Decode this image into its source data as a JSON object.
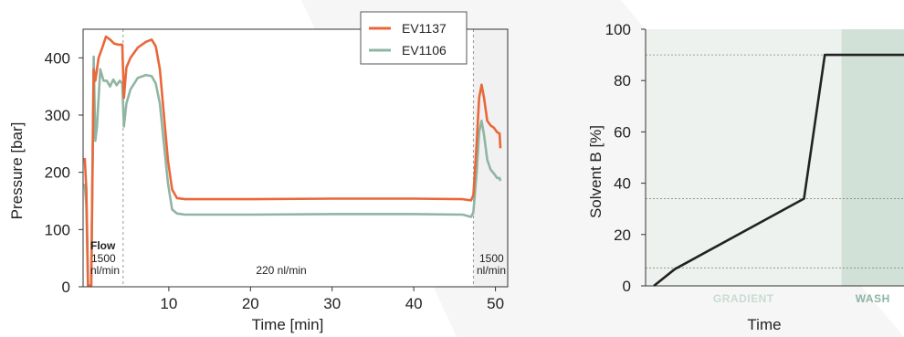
{
  "chart_data": [
    {
      "type": "line",
      "xlabel": "Time [min]",
      "ylabel": "Pressure [bar]",
      "xlim": [
        -0.5,
        51.5
      ],
      "ylim": [
        0,
        450
      ],
      "xticks": [
        10,
        20,
        30,
        40,
        50
      ],
      "yticks": [
        0,
        100,
        200,
        300,
        400
      ],
      "legend_position": "top-right",
      "annotations": {
        "flow_label": "Flow",
        "left_rate": "1500",
        "left_unit": "nl/min",
        "middle_rate": "220 nl/min",
        "right_rate": "1500",
        "right_unit": "nl/min"
      },
      "vlines_x": [
        4.4,
        47.3
      ],
      "series": [
        {
          "name": "EV1137",
          "color": "#e8683a",
          "points": [
            [
              -0.3,
              225
            ],
            [
              -0.1,
              170
            ],
            [
              0.1,
              2
            ],
            [
              0.5,
              2
            ],
            [
              0.8,
              380
            ],
            [
              1.0,
              360
            ],
            [
              1.4,
              400
            ],
            [
              1.9,
              420
            ],
            [
              2.3,
              437
            ],
            [
              2.8,
              432
            ],
            [
              3.3,
              425
            ],
            [
              3.8,
              423
            ],
            [
              4.3,
              423
            ],
            [
              4.5,
              330
            ],
            [
              4.8,
              383
            ],
            [
              5.3,
              400
            ],
            [
              6.2,
              418
            ],
            [
              7.2,
              428
            ],
            [
              7.9,
              432
            ],
            [
              8.4,
              420
            ],
            [
              8.9,
              380
            ],
            [
              9.4,
              300
            ],
            [
              9.9,
              220
            ],
            [
              10.4,
              170
            ],
            [
              11.0,
              155
            ],
            [
              12,
              153
            ],
            [
              20,
              153
            ],
            [
              30,
              154
            ],
            [
              40,
              154
            ],
            [
              46,
              153
            ],
            [
              47.0,
              151
            ],
            [
              47.3,
              160
            ],
            [
              47.7,
              250
            ],
            [
              48.0,
              330
            ],
            [
              48.3,
              353
            ],
            [
              48.6,
              330
            ],
            [
              49,
              290
            ],
            [
              49.4,
              282
            ],
            [
              49.8,
              278
            ],
            [
              50.2,
              270
            ],
            [
              50.5,
              268
            ],
            [
              50.6,
              242
            ]
          ]
        },
        {
          "name": "EV1106",
          "color": "#8fb5a3",
          "points": [
            [
              -0.3,
              180
            ],
            [
              -0.1,
              140
            ],
            [
              0.1,
              2
            ],
            [
              0.5,
              2
            ],
            [
              0.8,
              402
            ],
            [
              1.0,
              255
            ],
            [
              1.2,
              280
            ],
            [
              1.6,
              380
            ],
            [
              2.0,
              360
            ],
            [
              2.4,
              360
            ],
            [
              2.8,
              350
            ],
            [
              3.2,
              362
            ],
            [
              3.6,
              352
            ],
            [
              4.0,
              360
            ],
            [
              4.3,
              355
            ],
            [
              4.5,
              280
            ],
            [
              4.8,
              320
            ],
            [
              5.3,
              345
            ],
            [
              6.2,
              365
            ],
            [
              7.2,
              370
            ],
            [
              7.9,
              368
            ],
            [
              8.4,
              355
            ],
            [
              8.9,
              320
            ],
            [
              9.4,
              250
            ],
            [
              9.9,
              180
            ],
            [
              10.4,
              135
            ],
            [
              11.0,
              128
            ],
            [
              12,
              126
            ],
            [
              20,
              126
            ],
            [
              30,
              127
            ],
            [
              40,
              127
            ],
            [
              46,
              126
            ],
            [
              47.0,
              122
            ],
            [
              47.3,
              130
            ],
            [
              47.7,
              200
            ],
            [
              48.0,
              270
            ],
            [
              48.3,
              290
            ],
            [
              48.6,
              265
            ],
            [
              49,
              222
            ],
            [
              49.4,
              205
            ],
            [
              49.8,
              198
            ],
            [
              50.2,
              190
            ],
            [
              50.5,
              190
            ],
            [
              50.6,
              185
            ]
          ]
        }
      ]
    },
    {
      "type": "line",
      "xlabel": "Time",
      "ylabel": "Solvent B [%]",
      "ylim": [
        0,
        100
      ],
      "yticks": [
        0,
        20,
        40,
        60,
        80,
        100
      ],
      "x_units": "minutes (no tick labels)",
      "phases": [
        {
          "label": "GRADIENT",
          "x_start": 0,
          "x_end": 45,
          "color": "#eef2ef",
          "text_color": "#c7ddd1"
        },
        {
          "label": "WASH",
          "x_start": 45,
          "x_end": 60,
          "color": "#d2e1d7",
          "text_color": "#8fb5a3"
        }
      ],
      "xlim": [
        -2,
        60
      ],
      "hlines_y": [
        7,
        34,
        90
      ],
      "series": [
        {
          "name": "",
          "color": "#222222",
          "points": [
            [
              0,
              0
            ],
            [
              5,
              6.5
            ],
            [
              36,
              34
            ],
            [
              41,
              90
            ],
            [
              60,
              90
            ]
          ]
        }
      ]
    }
  ]
}
